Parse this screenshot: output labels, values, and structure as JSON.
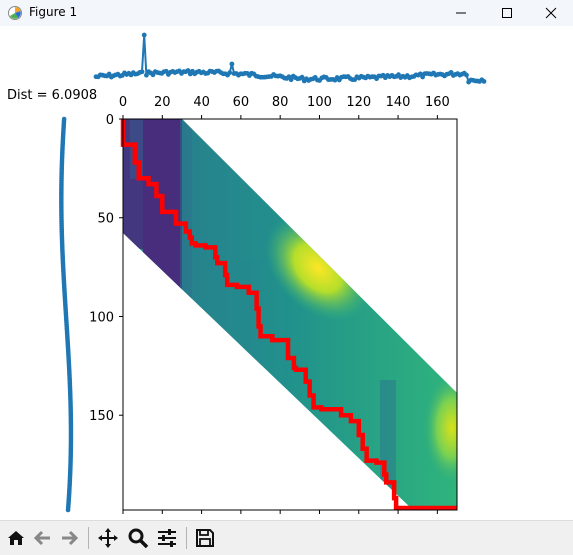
{
  "window": {
    "title": "Figure 1",
    "icon": "matplotlib-figure-icon",
    "controls": [
      "minimize-icon",
      "maximize-icon",
      "close-icon"
    ]
  },
  "figure": {
    "annotation": "Dist = 6.0908"
  },
  "chart_data": [
    {
      "type": "line",
      "role": "top-series",
      "marker": "circle",
      "color": "#1f77b4",
      "xlim": [
        0,
        177
      ],
      "peaks": [
        {
          "x": 22,
          "label": "tall spike"
        },
        {
          "x": 62,
          "label": "small spike"
        }
      ],
      "note_points": "noisy, gently undulating series with spikes near x=22 and x=62"
    },
    {
      "type": "line",
      "role": "left-series-vertical",
      "marker": "circle",
      "color": "#1f77b4",
      "ylim": [
        0,
        198
      ],
      "note_points": "smooth S-shaped curve plotted vertically"
    },
    {
      "type": "heatmap",
      "role": "dtw-cost-matrix",
      "colormap": "viridis",
      "band": "Sakoe-Chiba diagonal band",
      "x_ticks": [
        "0",
        "20",
        "40",
        "60",
        "80",
        "100",
        "120",
        "140",
        "160"
      ],
      "y_ticks": [
        "0",
        "50",
        "100",
        "150"
      ],
      "xlim": [
        0,
        170
      ],
      "ylim": [
        198,
        0
      ],
      "path_color": "#ff0000",
      "warping_path": [
        [
          0,
          0
        ],
        [
          0,
          10
        ],
        [
          6,
          13
        ],
        [
          8,
          22
        ],
        [
          13,
          30
        ],
        [
          17,
          33
        ],
        [
          20,
          39
        ],
        [
          27,
          47
        ],
        [
          32,
          53
        ],
        [
          34,
          57
        ],
        [
          35,
          60
        ],
        [
          37,
          63
        ],
        [
          42,
          64
        ],
        [
          47,
          65
        ],
        [
          48,
          70
        ],
        [
          52,
          73
        ],
        [
          53,
          79
        ],
        [
          58,
          84
        ],
        [
          64,
          85
        ],
        [
          68,
          88
        ],
        [
          69,
          96
        ],
        [
          70,
          105
        ],
        [
          76,
          110
        ],
        [
          84,
          112
        ],
        [
          87,
          121
        ],
        [
          88,
          126
        ],
        [
          93,
          127
        ],
        [
          95,
          133
        ],
        [
          97,
          140
        ],
        [
          101,
          146
        ],
        [
          111,
          147
        ],
        [
          116,
          150
        ],
        [
          120,
          153
        ],
        [
          122,
          160
        ],
        [
          124,
          167
        ],
        [
          129,
          173
        ],
        [
          133,
          174
        ],
        [
          134,
          180
        ],
        [
          138,
          184
        ],
        [
          139,
          192
        ],
        [
          146,
          197
        ],
        [
          170,
          197
        ]
      ]
    }
  ],
  "toolbar": {
    "buttons": [
      {
        "name": "home-icon",
        "glyph": "⌂"
      },
      {
        "name": "back-icon",
        "glyph": "←"
      },
      {
        "name": "forward-icon",
        "glyph": "→"
      },
      {
        "name": "pan-icon",
        "glyph": "✥"
      },
      {
        "name": "zoom-icon",
        "glyph": "⌕"
      },
      {
        "name": "configure-subplots-icon",
        "glyph": "≡"
      },
      {
        "name": "save-icon",
        "glyph": "💾"
      }
    ]
  }
}
